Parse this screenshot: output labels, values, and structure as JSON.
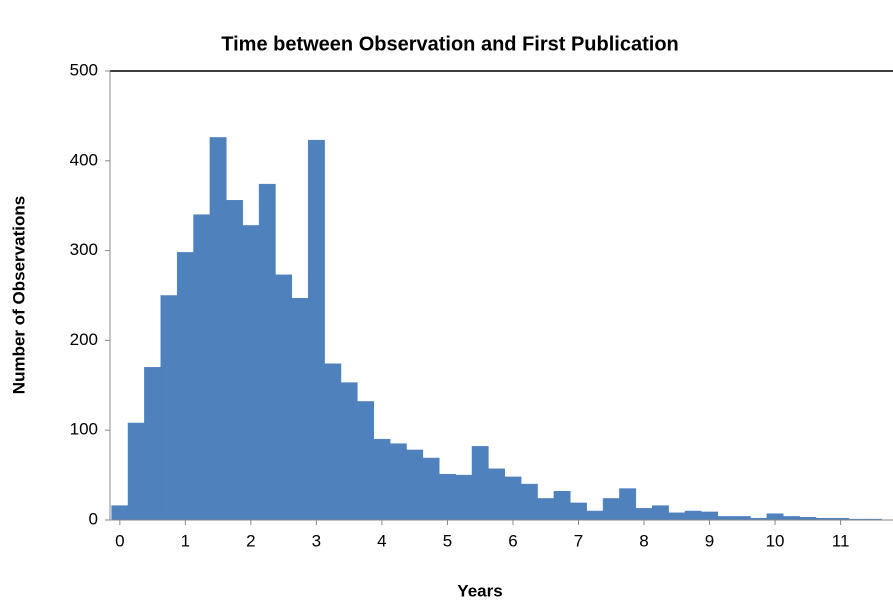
{
  "chart_data": {
    "type": "histogram",
    "title": "Time between Observation and First Publication",
    "x_label": "Years",
    "y_label": "Number of Observations",
    "bins": [
      -0.125,
      0.125,
      0.375,
      0.625,
      0.875,
      1.125,
      1.375,
      1.625,
      1.875,
      2.125,
      2.375,
      2.625,
      2.875,
      3.125,
      3.375,
      3.625,
      3.875,
      4.125,
      4.375,
      4.625,
      4.875,
      5.125,
      5.375,
      5.625,
      5.875,
      6.125,
      6.375,
      6.625,
      6.875,
      7.125,
      7.375,
      7.625,
      7.875,
      8.125,
      8.375,
      8.625,
      8.875,
      9.125,
      9.375,
      9.625,
      9.875,
      10.125,
      10.375,
      10.625,
      10.875,
      11.125,
      11.375,
      11.625
    ],
    "values": [
      16,
      108,
      170,
      250,
      298,
      340,
      426,
      356,
      328,
      374,
      273,
      247,
      423,
      174,
      153,
      132,
      90,
      85,
      78,
      69,
      51,
      50,
      82,
      57,
      48,
      40,
      24,
      32,
      19,
      10,
      24,
      35,
      13,
      16,
      8,
      10,
      9,
      4,
      4,
      2,
      7,
      4,
      3,
      2,
      2,
      1,
      1
    ],
    "color": "#4f81bd",
    "xlim": [
      -0.15,
      11.8
    ],
    "xticks": [
      0,
      1,
      2,
      3,
      4,
      5,
      6,
      7,
      8,
      9,
      10,
      11
    ],
    "ylim": [
      0,
      500
    ],
    "yticks": [
      0,
      100,
      200,
      300,
      400,
      500
    ]
  }
}
